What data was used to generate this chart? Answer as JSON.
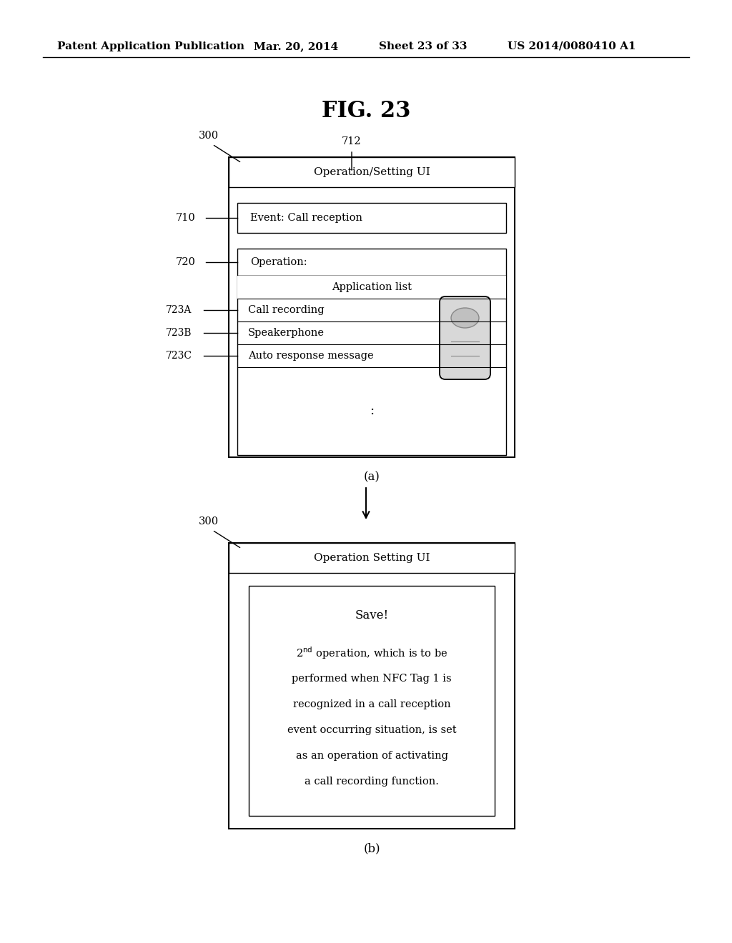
{
  "bg_color": "#ffffff",
  "header_text": "Patent Application Publication",
  "header_date": "Mar. 20, 2014",
  "header_sheet": "Sheet 23 of 33",
  "header_patent": "US 2014/0080410 A1",
  "fig_title": "FIG. 23",
  "diagram_a": {
    "label": "(a)",
    "ref_300": "300",
    "ref_712": "712",
    "ref_710": "710",
    "ref_720": "720",
    "ref_723A": "723A",
    "ref_723B": "723B",
    "ref_723C": "723C",
    "title_bar": "Operation/Setting UI",
    "row_710_text": "Event: Call reception",
    "row_720_text": "Operation:",
    "app_list_title": "Application list",
    "row_723A": "Call recording",
    "row_723B": "Speakerphone",
    "row_723C": "Auto response message",
    "dots": ":"
  },
  "diagram_b": {
    "label": "(b)",
    "ref_300": "300",
    "title_bar": "Operation Setting UI",
    "save_text": "Save!",
    "body_lines": [
      "performed when NFC Tag 1 is",
      "recognized in a call reception",
      "event occurring situation, is set",
      "as an operation of activating",
      "a call recording function."
    ]
  }
}
